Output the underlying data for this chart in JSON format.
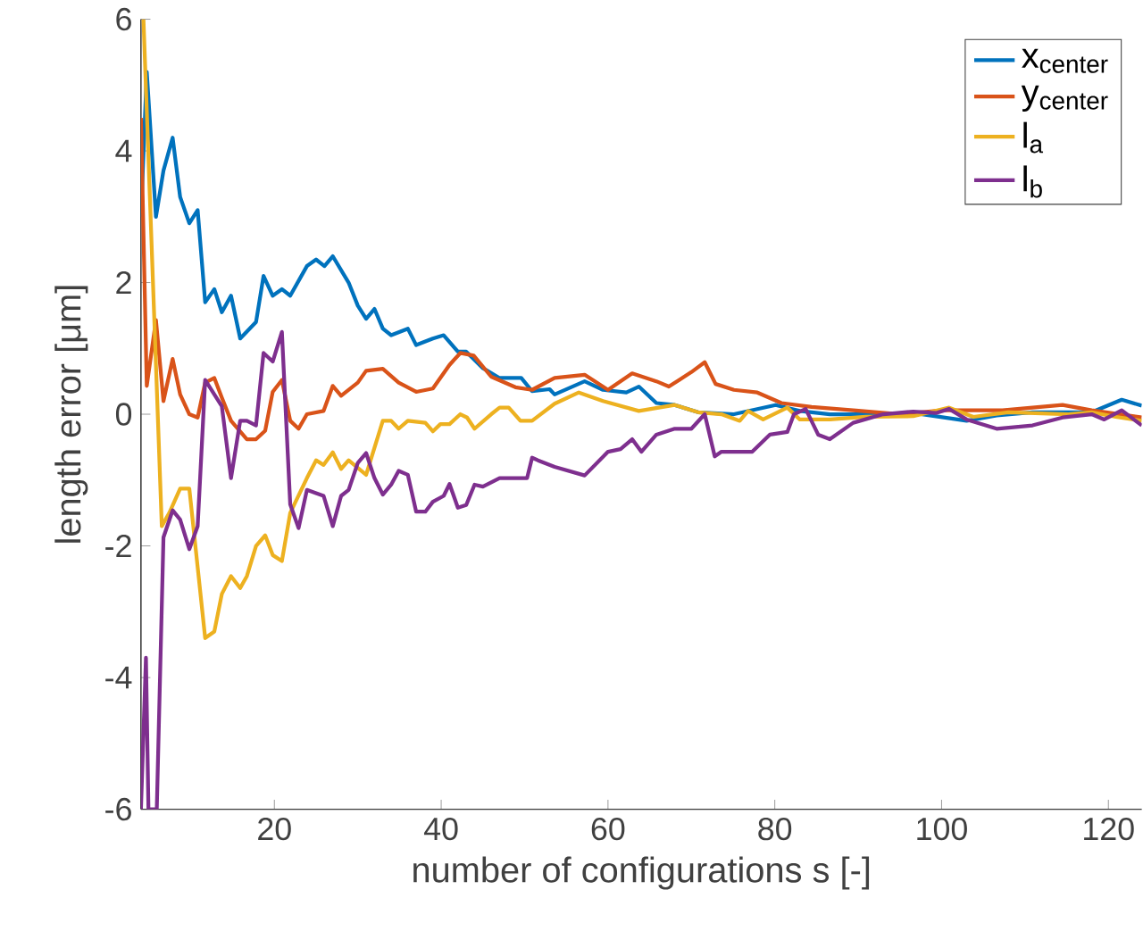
{
  "chart_data": {
    "type": "line",
    "xlabel": "number of configurations s [-]",
    "ylabel": "length error [μm]",
    "xlim": [
      4,
      124
    ],
    "ylim": [
      -6,
      6
    ],
    "xticks": [
      20,
      40,
      60,
      80,
      100,
      120
    ],
    "yticks": [
      -6,
      -4,
      -2,
      0,
      2,
      4,
      6
    ],
    "legend": "top right",
    "series": [
      {
        "name": "x$_{center}$",
        "color": "#0072bd",
        "x": [
          4,
          4.7,
          5.8,
          6.7,
          7.8,
          8.7,
          9.8,
          10.8,
          11.7,
          12.8,
          13.7,
          14.8,
          15.9,
          17.8,
          18.7,
          19.8,
          20.9,
          21.9,
          23.9,
          25,
          26,
          27,
          28.9,
          30,
          31,
          32,
          33,
          34,
          36,
          37,
          39,
          40.3,
          42,
          43,
          45,
          47,
          49.6,
          50.9,
          53,
          53.6,
          57.2,
          59.4,
          62.2,
          63.7,
          65.8,
          68,
          70.8,
          75.1,
          80.1,
          83,
          86.6,
          92.3,
          96.6,
          103,
          106.6,
          110.9,
          118,
          121.6,
          124
        ],
        "values": [
          3.0,
          5.2,
          3.0,
          3.7,
          4.2,
          3.3,
          2.9,
          3.1,
          1.7,
          1.9,
          1.55,
          1.8,
          1.15,
          1.4,
          2.1,
          1.8,
          1.9,
          1.8,
          2.25,
          2.35,
          2.25,
          2.4,
          2.0,
          1.65,
          1.45,
          1.6,
          1.3,
          1.2,
          1.3,
          1.05,
          1.15,
          1.2,
          0.95,
          0.95,
          0.7,
          0.55,
          0.55,
          0.35,
          0.38,
          0.3,
          0.5,
          0.37,
          0.33,
          0.42,
          0.17,
          0.14,
          0.03,
          0.0,
          0.14,
          0.05,
          0.0,
          0.0,
          0.02,
          -0.1,
          -0.02,
          0.03,
          0.03,
          0.22,
          0.13
        ]
      },
      {
        "name": "y$_{center}$",
        "color": "#d95319",
        "x": [
          4,
          4.7,
          5.8,
          6.7,
          7.8,
          8.7,
          9.8,
          10.8,
          11.7,
          12.8,
          13.7,
          14.8,
          16.7,
          17.8,
          18.9,
          19.8,
          20.9,
          21.9,
          22.9,
          23.9,
          25.9,
          27,
          28,
          30,
          31,
          33,
          34.9,
          37,
          39,
          41,
          42.3,
          43.9,
          46,
          48.9,
          50.9,
          53.6,
          57.2,
          60,
          62.9,
          65.8,
          67.3,
          70,
          71.6,
          72.9,
          75.1,
          77.9,
          80.8,
          84.4,
          89.4,
          95.1,
          100.1,
          107.3,
          114.5,
          118,
          124
        ],
        "values": [
          4.5,
          0.43,
          1.43,
          0.2,
          0.84,
          0.3,
          0.0,
          -0.05,
          0.48,
          0.55,
          0.25,
          -0.1,
          -0.38,
          -0.38,
          -0.25,
          0.34,
          0.52,
          -0.1,
          -0.22,
          0.0,
          0.05,
          0.43,
          0.28,
          0.48,
          0.66,
          0.69,
          0.48,
          0.34,
          0.39,
          0.75,
          0.93,
          0.89,
          0.57,
          0.41,
          0.37,
          0.55,
          0.6,
          0.37,
          0.62,
          0.5,
          0.42,
          0.64,
          0.79,
          0.46,
          0.37,
          0.33,
          0.17,
          0.11,
          0.06,
          0.0,
          0.06,
          0.06,
          0.14,
          0.06,
          -0.05
        ]
      },
      {
        "name": "l$_{a}$",
        "color": "#edb120",
        "x": [
          4.3,
          6.5,
          7.4,
          8.7,
          9.8,
          11.7,
          12.8,
          13.7,
          14.8,
          15.9,
          16.7,
          17.8,
          18.9,
          19.8,
          20.9,
          21.9,
          23.9,
          25,
          25.9,
          27,
          28,
          28.9,
          31,
          33,
          34,
          34.9,
          36,
          38.1,
          39,
          39.9,
          41,
          42.3,
          43.1,
          44,
          46,
          47,
          48.1,
          49.5,
          50.9,
          53.6,
          56.5,
          59.4,
          63.7,
          68,
          70.8,
          73.6,
          75.8,
          76.8,
          78.6,
          81.5,
          83,
          86.6,
          90.9,
          96.6,
          100.9,
          103.8,
          108,
          115.2,
          118,
          120.9,
          124
        ],
        "values": [
          6.0,
          -1.7,
          -1.5,
          -1.13,
          -1.13,
          -3.4,
          -3.3,
          -2.73,
          -2.46,
          -2.64,
          -2.46,
          -2.0,
          -1.84,
          -2.14,
          -2.23,
          -1.5,
          -0.97,
          -0.7,
          -0.77,
          -0.58,
          -0.83,
          -0.7,
          -0.92,
          -0.1,
          -0.1,
          -0.22,
          -0.1,
          -0.13,
          -0.26,
          -0.15,
          -0.15,
          0.0,
          -0.05,
          -0.22,
          0.0,
          0.1,
          0.1,
          -0.1,
          -0.1,
          0.16,
          0.33,
          0.2,
          0.05,
          0.14,
          0.03,
          0.0,
          -0.1,
          0.05,
          -0.08,
          0.1,
          -0.08,
          -0.08,
          -0.04,
          -0.03,
          0.1,
          -0.04,
          0.03,
          0.0,
          0.03,
          -0.04,
          -0.1
        ]
      },
      {
        "name": "l$_{b}$",
        "color": "#7e2f8e",
        "x": [
          4,
          4.6,
          4.9,
          5.9,
          6.7,
          7.8,
          8.7,
          9.8,
          10.8,
          11.7,
          12.8,
          13.7,
          14.8,
          15.9,
          16.7,
          17.8,
          18.7,
          19.8,
          20.9,
          21.9,
          22.9,
          23.9,
          25,
          25.9,
          27,
          28,
          28.9,
          30,
          31,
          32,
          33,
          34,
          34.9,
          36,
          37,
          38.1,
          39,
          40.3,
          41,
          42,
          43,
          44,
          45,
          47,
          48.9,
          50.3,
          50.9,
          51.6,
          53.6,
          57.2,
          60,
          61.5,
          62.9,
          64,
          65.8,
          68,
          70,
          71.6,
          72.8,
          73.6,
          75.1,
          77.3,
          79.4,
          81.5,
          82.3,
          83.7,
          85.2,
          86.6,
          89.4,
          93,
          96.6,
          99.4,
          100.9,
          103,
          106.6,
          110.9,
          114.5,
          118,
          119.5,
          121.6,
          124
        ],
        "values": [
          -6,
          -3.7,
          -6,
          -6,
          -1.87,
          -1.46,
          -1.6,
          -2.05,
          -1.7,
          0.52,
          0.3,
          0.12,
          -0.97,
          -0.1,
          -0.1,
          -0.17,
          0.93,
          0.8,
          1.25,
          -1.37,
          -1.73,
          -1.15,
          -1.2,
          -1.24,
          -1.7,
          -1.24,
          -1.15,
          -0.74,
          -0.59,
          -0.97,
          -1.22,
          -1.07,
          -0.86,
          -0.92,
          -1.48,
          -1.48,
          -1.33,
          -1.24,
          -1.06,
          -1.42,
          -1.38,
          -1.07,
          -1.1,
          -0.97,
          -0.97,
          -0.97,
          -0.66,
          -0.7,
          -0.8,
          -0.93,
          -0.57,
          -0.53,
          -0.38,
          -0.57,
          -0.31,
          -0.22,
          -0.22,
          0.0,
          -0.64,
          -0.57,
          -0.57,
          -0.57,
          -0.31,
          -0.27,
          0.0,
          0.08,
          -0.31,
          -0.38,
          -0.13,
          0.0,
          0.04,
          0.02,
          0.08,
          -0.08,
          -0.22,
          -0.17,
          -0.05,
          0.0,
          -0.08,
          0.06,
          -0.17
        ]
      }
    ]
  }
}
